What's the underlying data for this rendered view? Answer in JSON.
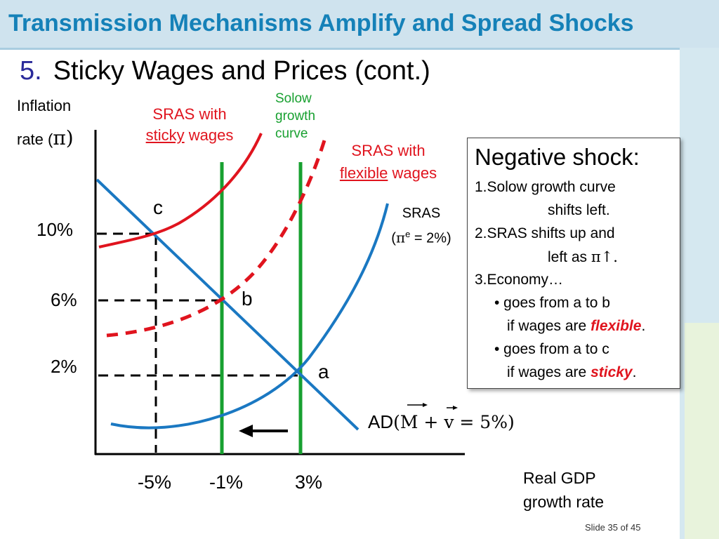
{
  "slide": {
    "title": "Transmission Mechanisms Amplify and Spread Shocks",
    "subtitle_number": "5.",
    "subtitle": "Sticky Wages and Prices (cont.)",
    "slide_number": "Slide 35 of 45"
  },
  "axes": {
    "y_label_line1": "Inflation",
    "y_label_line2_prefix": "rate (",
    "y_label_symbol": "π",
    "y_label_line2_suffix": ")",
    "x_label_line1": "Real GDP",
    "x_label_line2": "growth rate",
    "y_ticks": [
      "10%",
      "6%",
      "2%"
    ],
    "x_ticks": [
      "-5%",
      "-1%",
      "3%"
    ]
  },
  "curves": {
    "sras_sticky_line1": "SRAS with",
    "sras_sticky_line2_underlined": "sticky",
    "sras_sticky_line2_rest": " wages",
    "solow_line1": "Solow",
    "solow_line2": "growth",
    "solow_line3": "curve",
    "sras_flexible_line1": "SRAS with",
    "sras_flexible_line2_underlined": "flexible",
    "sras_flexible_line2_rest": " wages",
    "sras_line1": "SRAS",
    "sras_line2_open": "(",
    "sras_line2_pi": "π",
    "sras_line2_sup": "e",
    "sras_line2_rest": " = 2%)",
    "ad_prefix": "AD",
    "ad_formula": "(M + v = 5%)"
  },
  "points": {
    "a": "a",
    "b": "b",
    "c": "c"
  },
  "colors": {
    "title": "#1581b8",
    "curve_blue": "#1a78c2",
    "curve_red": "#e0141e",
    "curve_green": "#18a030",
    "title_bar": "#cfe3ee"
  },
  "shock_box": {
    "heading": "Negative shock:",
    "line1": "1.Solow growth curve",
    "line2": "shifts left.",
    "line3": "2.SRAS shifts up and",
    "line4_prefix": "left as ",
    "line4_symbol": "π↑.",
    "line5": "3.Economy…",
    "line6": "• goes from a to b",
    "line7_prefix": "if wages are ",
    "line7_emph": "flexible",
    "line7_suffix": ".",
    "line8": "• goes from a to c",
    "line9_prefix": "if wages are ",
    "line9_emph": "sticky",
    "line9_suffix": "."
  }
}
